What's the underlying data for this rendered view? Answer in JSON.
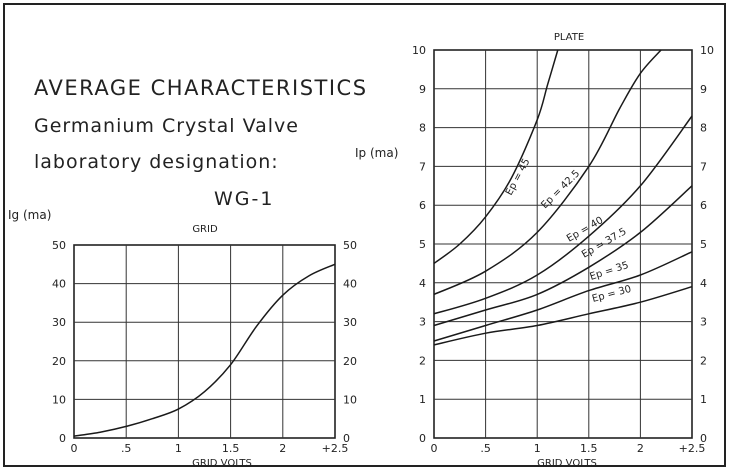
{
  "header": {
    "title": "AVERAGE CHARACTERISTICS",
    "line2": "Germanium Crystal Valve",
    "line3": "laboratory designation:",
    "designation": "WG-1"
  },
  "chart_data": [
    {
      "type": "line",
      "title": "GRID",
      "xlabel": "GRID VOLTS",
      "ylabel": "Ig (ma)",
      "xlim": [
        0,
        2.5
      ],
      "ylim": [
        0,
        50
      ],
      "grid": true,
      "x_ticks": [
        "0",
        ".5",
        "1",
        "1.5",
        "2",
        "+2.5"
      ],
      "y_ticks": [
        "0",
        "10",
        "20",
        "30",
        "40",
        "50"
      ],
      "series": [
        {
          "x": [
            0,
            0.25,
            0.5,
            0.75,
            1.0,
            1.25,
            1.5,
            1.75,
            2.0,
            2.25,
            2.5
          ],
          "y": [
            0.5,
            1.5,
            3,
            5,
            7.5,
            12,
            19,
            29,
            37,
            42,
            45
          ]
        }
      ]
    },
    {
      "type": "line",
      "title": "PLATE",
      "xlabel": "GRID VOLTS",
      "ylabel": "Ip (ma)",
      "xlim": [
        0,
        2.5
      ],
      "ylim": [
        0,
        10
      ],
      "grid": true,
      "x_ticks": [
        "0",
        ".5",
        "1",
        "1.5",
        "2",
        "+2.5"
      ],
      "y_ticks": [
        "0",
        "1",
        "2",
        "3",
        "4",
        "5",
        "6",
        "7",
        "8",
        "9",
        "10"
      ],
      "series": [
        {
          "name": "Ep = 45",
          "x": [
            0,
            0.25,
            0.5,
            0.75,
            1.0,
            1.1,
            1.2
          ],
          "y": [
            4.5,
            5.0,
            5.7,
            6.7,
            8.2,
            9.1,
            10
          ]
        },
        {
          "name": "Ep = 42.5",
          "x": [
            0,
            0.5,
            1.0,
            1.5,
            1.8,
            2.0,
            2.2
          ],
          "y": [
            3.7,
            4.3,
            5.3,
            7.0,
            8.5,
            9.4,
            10
          ]
        },
        {
          "name": "Ep = 40",
          "x": [
            0,
            0.5,
            1.0,
            1.5,
            2.0,
            2.5
          ],
          "y": [
            3.2,
            3.6,
            4.2,
            5.2,
            6.5,
            8.3
          ]
        },
        {
          "name": "Ep = 37.5",
          "x": [
            0,
            0.5,
            1.0,
            1.5,
            2.0,
            2.5
          ],
          "y": [
            2.9,
            3.3,
            3.7,
            4.4,
            5.3,
            6.5
          ]
        },
        {
          "name": "Ep = 35",
          "x": [
            0,
            0.5,
            1.0,
            1.5,
            2.0,
            2.5
          ],
          "y": [
            2.5,
            2.9,
            3.3,
            3.8,
            4.2,
            4.8
          ]
        },
        {
          "name": "Ep = 30",
          "x": [
            0,
            0.5,
            1.0,
            1.5,
            2.0,
            2.5
          ],
          "y": [
            2.4,
            2.7,
            2.9,
            3.2,
            3.5,
            3.9
          ]
        }
      ]
    }
  ]
}
